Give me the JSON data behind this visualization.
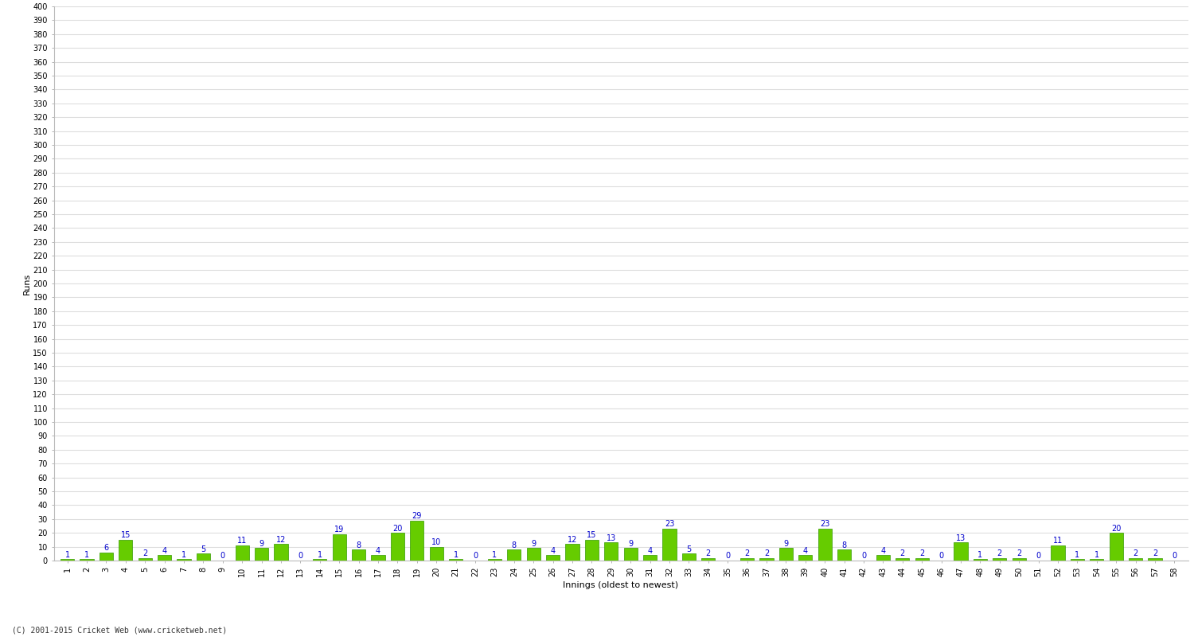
{
  "values": [
    1,
    1,
    6,
    15,
    2,
    4,
    1,
    5,
    0,
    11,
    9,
    12,
    0,
    1,
    19,
    8,
    4,
    20,
    29,
    10,
    1,
    0,
    1,
    8,
    9,
    4,
    12,
    15,
    13,
    9,
    4,
    23,
    5,
    2,
    0,
    2,
    2,
    9,
    4,
    23,
    8,
    0,
    4,
    2,
    2,
    0,
    13,
    1,
    2,
    2,
    0,
    11,
    1,
    1,
    20,
    2,
    2,
    0
  ],
  "innings": [
    1,
    2,
    3,
    4,
    5,
    6,
    7,
    8,
    9,
    10,
    11,
    12,
    13,
    14,
    15,
    16,
    17,
    18,
    19,
    20,
    21,
    22,
    23,
    24,
    25,
    26,
    27,
    28,
    29,
    30,
    31,
    32,
    33,
    34,
    35,
    36,
    37,
    38,
    39,
    40,
    41,
    42,
    43,
    44,
    45,
    46,
    47,
    48,
    49,
    50,
    51,
    52,
    53,
    54,
    55,
    56,
    57,
    58
  ],
  "bar_color": "#66cc00",
  "bar_edge_color": "#339900",
  "label_color": "#0000cc",
  "ylabel": "Runs",
  "xlabel": "Innings (oldest to newest)",
  "ylim": [
    0,
    400
  ],
  "yticks": [
    0,
    10,
    20,
    30,
    40,
    50,
    60,
    70,
    80,
    90,
    100,
    110,
    120,
    130,
    140,
    150,
    160,
    170,
    180,
    190,
    200,
    210,
    220,
    230,
    240,
    250,
    260,
    270,
    280,
    290,
    300,
    310,
    320,
    330,
    340,
    350,
    360,
    370,
    380,
    390,
    400
  ],
  "footer": "(C) 2001-2015 Cricket Web (www.cricketweb.net)",
  "bg_color": "#ffffff",
  "grid_color": "#dddddd",
  "ytick_fontsize": 7,
  "xtick_fontsize": 7,
  "label_fontsize": 7,
  "ylabel_fontsize": 8
}
